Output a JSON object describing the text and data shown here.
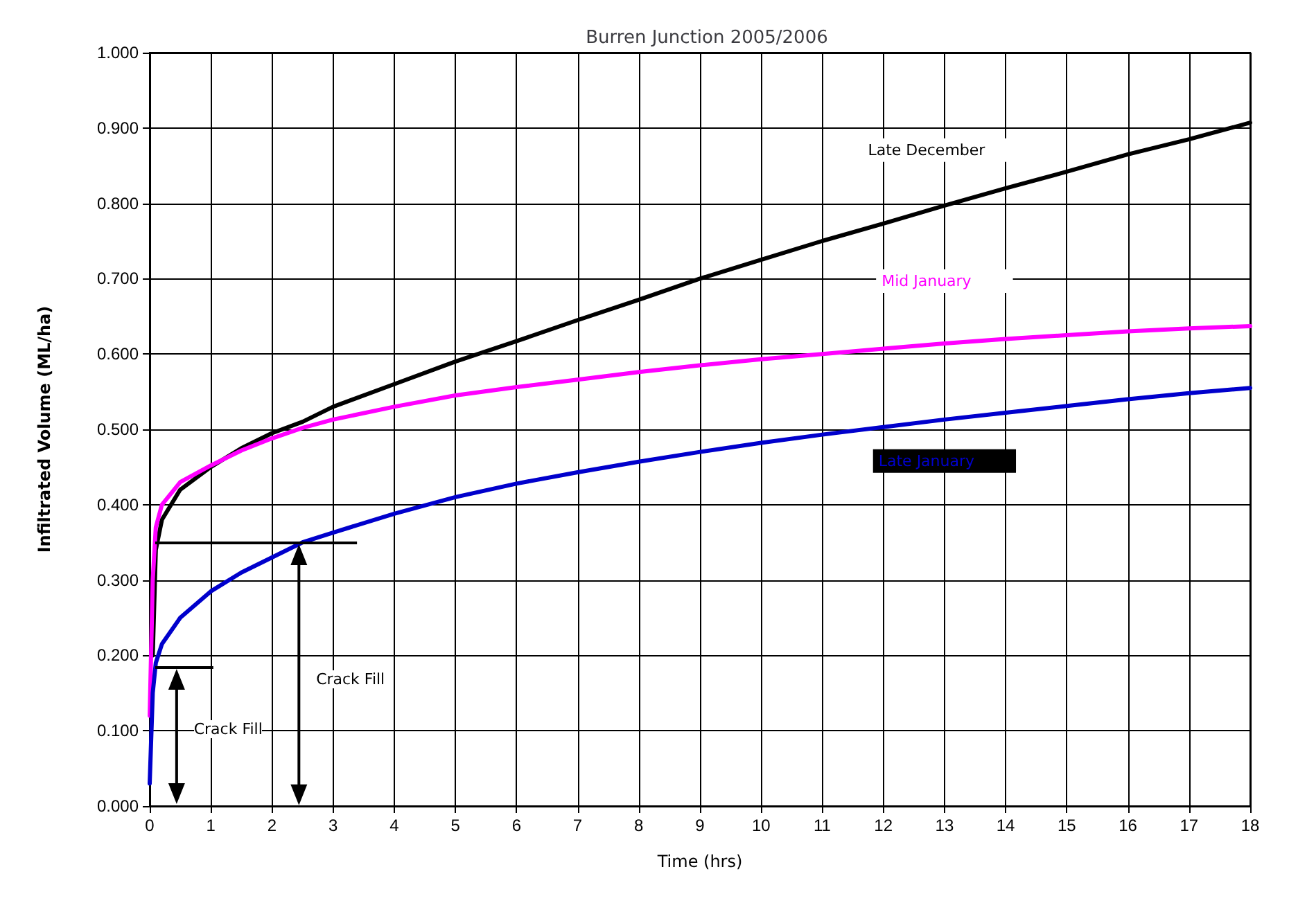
{
  "chart_data": {
    "type": "line",
    "title": "Burren Junction 2005/2006",
    "xlabel": "Time (hrs)",
    "ylabel": "Infiltrated Volume (ML/ha)",
    "xlim": [
      0,
      18
    ],
    "xticks": [
      0,
      1,
      2,
      3,
      4,
      5,
      6,
      7,
      8,
      9,
      10,
      11,
      12,
      13,
      14,
      15,
      16,
      17,
      18
    ],
    "ylim": [
      0,
      1
    ],
    "yticks": [
      {
        "value": 0,
        "label": "0.000"
      },
      {
        "value": 0.1,
        "label": "0.100"
      },
      {
        "value": 0.2,
        "label": "0.200"
      },
      {
        "value": 0.3,
        "label": "0.300"
      },
      {
        "value": 0.4,
        "label": "0.400"
      },
      {
        "value": 0.5,
        "label": "0.500"
      },
      {
        "value": 0.6,
        "label": "0.600"
      },
      {
        "value": 0.7,
        "label": "0.700"
      },
      {
        "value": 0.8,
        "label": "0.800"
      },
      {
        "value": 0.9,
        "label": "0.900"
      },
      {
        "value": 1,
        "label": "1.000"
      }
    ],
    "grid": true,
    "marker": "none",
    "line_style": "solid",
    "series": [
      {
        "name": "Late December",
        "color": "#000000",
        "x": [
          0.05,
          0.1,
          0.2,
          0.5,
          1,
          1.5,
          2,
          2.5,
          3,
          4,
          5,
          6,
          7,
          8,
          9,
          10,
          11,
          12,
          13,
          14,
          15,
          16,
          17,
          18
        ],
        "values": [
          0.2,
          0.34,
          0.38,
          0.42,
          0.45,
          0.475,
          0.495,
          0.51,
          0.53,
          0.56,
          0.59,
          0.617,
          0.645,
          0.672,
          0.7,
          0.725,
          0.75,
          0.773,
          0.797,
          0.82,
          0.842,
          0.865,
          0.885,
          0.907
        ]
      },
      {
        "name": "Mid January",
        "color": "#ff00ff",
        "x": [
          0,
          0.05,
          0.1,
          0.2,
          0.5,
          1,
          1.5,
          2,
          2.5,
          3,
          4,
          5,
          6,
          7,
          8,
          9,
          10,
          11,
          12,
          13,
          14,
          15,
          16,
          17,
          18
        ],
        "values": [
          0.12,
          0.3,
          0.37,
          0.4,
          0.43,
          0.452,
          0.472,
          0.488,
          0.502,
          0.513,
          0.53,
          0.545,
          0.556,
          0.566,
          0.576,
          0.585,
          0.593,
          0.6,
          0.607,
          0.614,
          0.62,
          0.625,
          0.63,
          0.634,
          0.637
        ]
      },
      {
        "name": "Late January",
        "color": "#0000cc",
        "x": [
          0,
          0.05,
          0.1,
          0.2,
          0.5,
          1,
          1.5,
          2,
          2.5,
          3,
          4,
          5,
          6,
          7,
          8,
          9,
          10,
          11,
          12,
          13,
          14,
          15,
          16,
          17,
          18
        ],
        "values": [
          0.03,
          0.15,
          0.19,
          0.215,
          0.25,
          0.285,
          0.31,
          0.33,
          0.35,
          0.363,
          0.388,
          0.41,
          0.428,
          0.443,
          0.457,
          0.47,
          0.482,
          0.493,
          0.503,
          0.513,
          0.522,
          0.531,
          0.54,
          0.548,
          0.555
        ]
      }
    ],
    "annotations": [
      "Crack Fill",
      "Crack Fill"
    ]
  }
}
